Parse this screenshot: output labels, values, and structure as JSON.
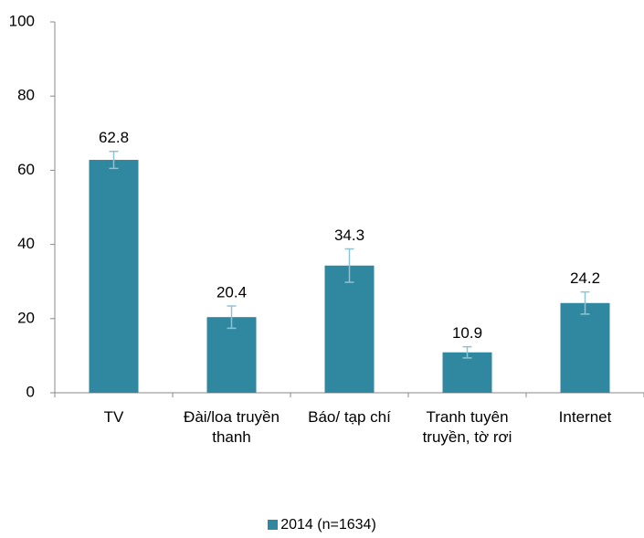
{
  "chart_data": {
    "type": "bar",
    "categories": [
      "TV",
      "Đài/loa truyền thanh",
      "Báo/ tạp chí",
      "Tranh tuyên truyền, tờ rơi",
      "Internet"
    ],
    "series": [
      {
        "name": "2014 (n=1634)",
        "color": "#2f87a0",
        "values": [
          62.8,
          20.4,
          34.3,
          10.9,
          24.2
        ],
        "errors": [
          2.3,
          3,
          4.5,
          1.5,
          3
        ]
      }
    ],
    "ylim": [
      0,
      100
    ],
    "yticks": [
      0,
      20,
      40,
      60,
      80,
      100
    ],
    "legend": "bottom"
  }
}
